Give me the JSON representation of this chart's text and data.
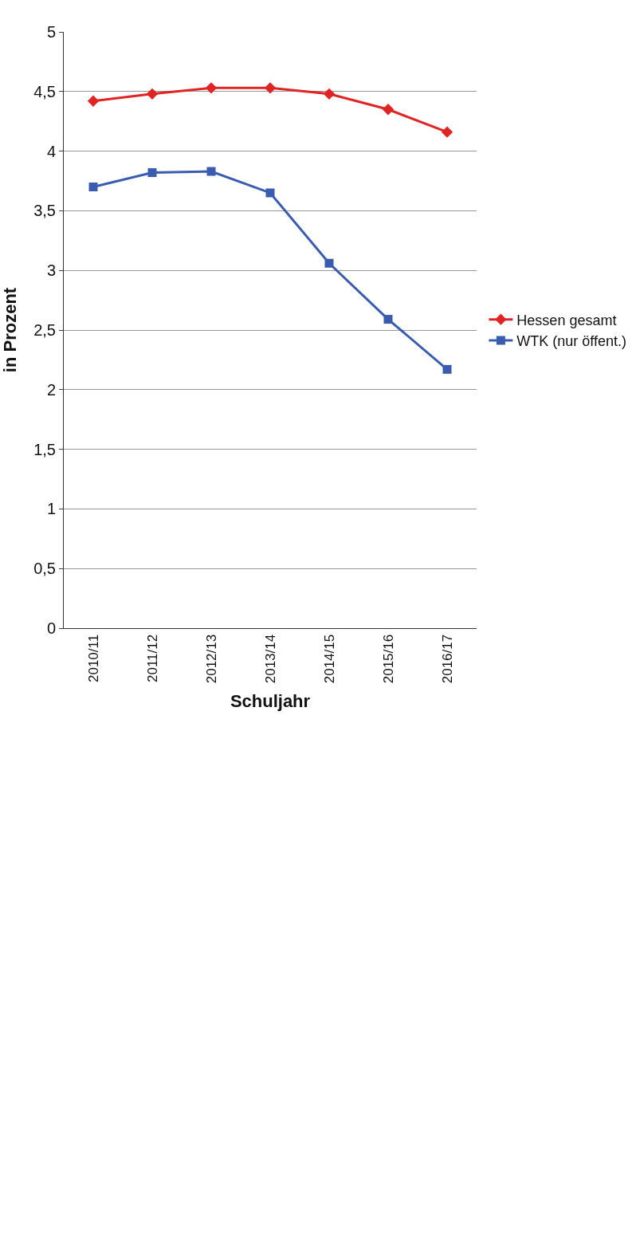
{
  "chart_data": {
    "type": "line",
    "xlabel": "Schuljahr",
    "ylabel": "in Prozent",
    "categories": [
      "2010/11",
      "2011/12",
      "2012/13",
      "2013/14",
      "2014/15",
      "2015/16",
      "2016/17"
    ],
    "series": [
      {
        "name": "Hessen gesamt",
        "color": "#e02424",
        "marker": "diamond",
        "values": [
          4.42,
          4.48,
          4.53,
          4.53,
          4.48,
          4.35,
          4.16
        ]
      },
      {
        "name": "WTK (nur öffent.)",
        "color": "#3a5cb0",
        "marker": "square",
        "values": [
          3.7,
          3.82,
          3.83,
          3.65,
          3.06,
          2.59,
          2.17
        ]
      }
    ],
    "ylim": [
      0,
      5
    ],
    "yticks": [
      {
        "value": 0,
        "label": "0"
      },
      {
        "value": 0.5,
        "label": "0,5"
      },
      {
        "value": 1,
        "label": "1"
      },
      {
        "value": 1.5,
        "label": "1,5"
      },
      {
        "value": 2,
        "label": "2"
      },
      {
        "value": 2.5,
        "label": "2,5"
      },
      {
        "value": 3,
        "label": "3"
      },
      {
        "value": 3.5,
        "label": "3,5"
      },
      {
        "value": 4,
        "label": "4"
      },
      {
        "value": 4.5,
        "label": "4,5"
      },
      {
        "value": 5,
        "label": "5"
      }
    ],
    "grid": "y",
    "legend": "right",
    "line_style": "solid"
  }
}
